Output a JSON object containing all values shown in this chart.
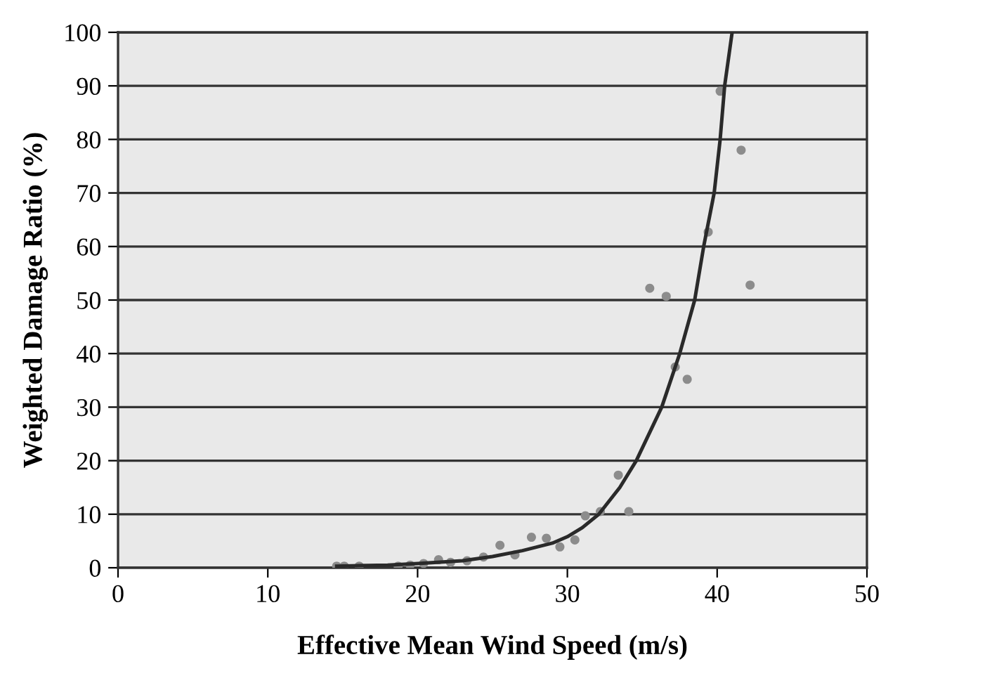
{
  "chart_data": {
    "type": "scatter",
    "xlabel": "Effective Mean Wind Speed (m/s)",
    "ylabel": "Weighted Damage Ratio (%)",
    "xlim": [
      0,
      50
    ],
    "ylim": [
      0,
      100
    ],
    "xticks": [
      0,
      10,
      20,
      30,
      40,
      50
    ],
    "yticks": [
      0,
      10,
      20,
      30,
      40,
      50,
      60,
      70,
      80,
      90,
      100
    ],
    "grid": "y",
    "legend": false,
    "marker": "circle",
    "series": [
      {
        "color": "#8c8c8c",
        "x": [
          14.6,
          15.1,
          16.1,
          18.7,
          19.5,
          20.4,
          21.4,
          22.2,
          23.3,
          24.4,
          25.5,
          26.5,
          27.6,
          28.6,
          29.5,
          30.5,
          31.2,
          32.2,
          33.4,
          34.1,
          35.5,
          36.6,
          37.2,
          38.0,
          39.4,
          40.2,
          41.6,
          42.2
        ],
        "values": [
          0.3,
          0.3,
          0.3,
          0.3,
          0.5,
          0.8,
          1.5,
          1.0,
          1.3,
          2,
          4.2,
          2.4,
          5.7,
          5.5,
          3.9,
          5.2,
          9.7,
          10.5,
          17.3,
          10.5,
          52.2,
          50.7,
          37.5,
          35.2,
          62.7,
          89,
          78,
          52.8
        ]
      },
      {
        "type": "line",
        "color": "#2a2a2a",
        "marker": "none",
        "x": [
          14.6,
          18,
          20,
          23,
          25,
          27,
          29,
          30,
          31,
          32.1,
          33.5,
          34.6,
          36.3,
          37.5,
          38.5,
          39.1,
          39.8,
          40.2,
          40.5,
          41
        ],
        "values": [
          0.3,
          0.5,
          0.8,
          1.3,
          2.1,
          3.2,
          4.6,
          5.8,
          7.5,
          10,
          15,
          20,
          30,
          40,
          50,
          60,
          70,
          80,
          90,
          100
        ]
      }
    ]
  }
}
